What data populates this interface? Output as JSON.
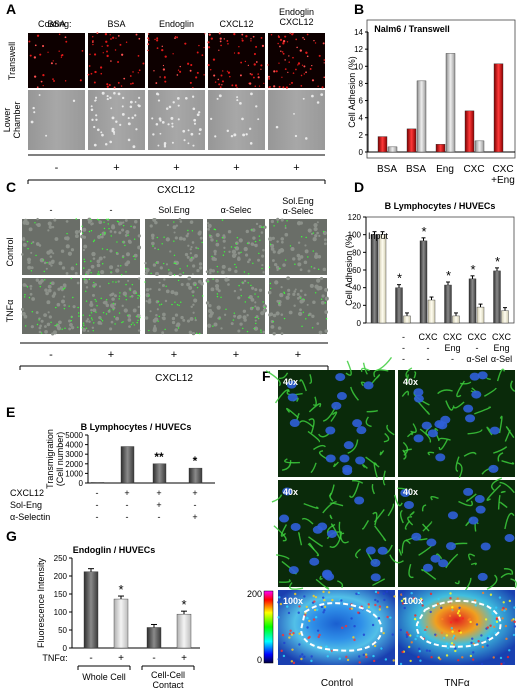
{
  "panelA": {
    "letter": "A",
    "coating_label": "Coating:",
    "columns": [
      "BSA",
      "BSA",
      "Endoglin",
      "CXCL12",
      "Endoglin\nCXCL12"
    ],
    "row_labels": [
      "Transwell",
      "Lower\nChamber"
    ],
    "signs": [
      "-",
      "+",
      "+",
      "+",
      "+"
    ],
    "axis_label": "CXCL12"
  },
  "panelC": {
    "letter": "C",
    "columns": [
      "-",
      "-",
      "Sol.Eng",
      "α-Selec",
      "Sol.Eng\nα-Selec"
    ],
    "row_labels": [
      "Control",
      "TNFα"
    ],
    "signs": [
      "-",
      "+",
      "+",
      "+",
      "+"
    ],
    "axis_label": "CXCL12"
  },
  "panelF": {
    "letter": "F",
    "magnifications": [
      "40x",
      "40x",
      "40x",
      "40x",
      "100x",
      "100x"
    ],
    "colorbar_max": "200",
    "colorbar_min": "0",
    "col_labels": [
      "Control",
      "TNFα"
    ]
  },
  "chart_data": [
    {
      "id": "B",
      "type": "bar",
      "title": "Nalm6 / Transwell",
      "ylabel": "Cell Adhesion (%)",
      "ylim": [
        0,
        14
      ],
      "yticks": [
        0,
        2,
        4,
        6,
        8,
        10,
        12,
        14
      ],
      "categories": [
        "BSA",
        "BSA",
        "Eng",
        "CXC",
        "CXC\n+Eng"
      ],
      "series": [
        {
          "values": [
            1.8,
            2.7,
            0.9,
            4.8,
            10.3
          ],
          "color": "#cc1111"
        },
        {
          "values": [
            0.6,
            8.3,
            11.5,
            1.3,
            null
          ],
          "color": "#b8b8b8"
        }
      ],
      "grid": false
    },
    {
      "id": "D",
      "type": "bar",
      "title": "B Lymphocytes / HUVECs",
      "ylabel": "Cell Adhesion (%)",
      "ylim": [
        0,
        120
      ],
      "yticks": [
        0,
        20,
        40,
        60,
        80,
        100,
        120
      ],
      "categories": [
        "Input",
        "-",
        "CXC",
        "CXC\nEng",
        "CXC\nα-Sel",
        "CXC\nEng\nα-Sel"
      ],
      "row_labels": [
        [
          "",
          "-",
          "CXC",
          "CXC",
          "CXC",
          "CXC"
        ],
        [
          "",
          "-",
          "-",
          "Eng",
          "-",
          "Eng"
        ],
        [
          "",
          "-",
          "-",
          "-",
          "α-Sel",
          "α-Sel"
        ]
      ],
      "input_label": "Input",
      "series": [
        {
          "values": [
            100,
            40,
            93,
            43,
            50,
            59
          ],
          "color": "#555555"
        },
        {
          "values": [
            100,
            8,
            26,
            8,
            18,
            14
          ],
          "color": "#f4f1e0"
        }
      ],
      "stars": [
        false,
        true,
        true,
        true,
        true,
        true
      ],
      "star_label": "*",
      "grid": false
    },
    {
      "id": "E",
      "type": "bar",
      "title": "B Lymphocytes / HUVECs",
      "ylabel": "Transmigration\n(Cell number)",
      "ylim": [
        0,
        5000
      ],
      "yticks": [
        0,
        1000,
        2000,
        3000,
        4000,
        5000
      ],
      "categories": [
        "1",
        "2",
        "3",
        "4"
      ],
      "row_names": [
        "CXCL12",
        "Sol-Eng",
        "α-Selectin"
      ],
      "rows": [
        [
          "-",
          "+",
          "+",
          "+"
        ],
        [
          "-",
          "-",
          "+",
          "-"
        ],
        [
          "-",
          "-",
          "-",
          "+"
        ]
      ],
      "values": [
        60,
        3800,
        2000,
        1550
      ],
      "stars": [
        "",
        "",
        "**",
        "*"
      ],
      "grid": false
    },
    {
      "id": "G",
      "type": "bar",
      "title": "Endoglin / HUVECs",
      "ylabel": "Fluorescence Intensity",
      "ylim": [
        0,
        250
      ],
      "yticks": [
        0,
        50,
        100,
        150,
        200,
        250
      ],
      "categories": [
        "-",
        "+",
        "-",
        "+"
      ],
      "tnf_label": "TNFα:",
      "groups": [
        "Whole Cell",
        "Cell-Cell\nContact"
      ],
      "values": [
        212,
        136,
        57,
        94
      ],
      "stars": [
        "",
        "*",
        "",
        "*"
      ],
      "grid": false
    }
  ]
}
